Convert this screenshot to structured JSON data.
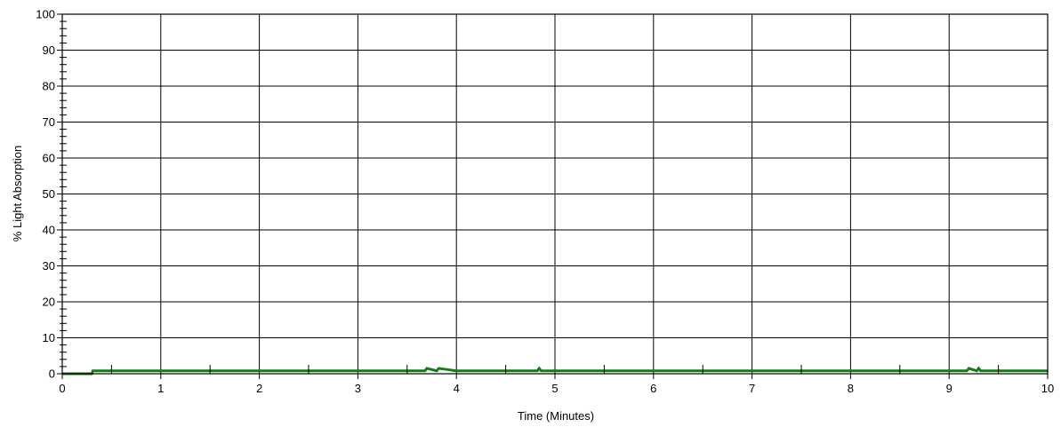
{
  "chart_data": {
    "type": "line",
    "title": "",
    "xlabel": "Time (Minutes)",
    "ylabel": "% Light Absorption",
    "xlim": [
      0,
      10
    ],
    "ylim": [
      0,
      100
    ],
    "x_ticks": [
      0,
      1,
      2,
      3,
      4,
      5,
      6,
      7,
      8,
      9,
      10
    ],
    "y_ticks": [
      0,
      10,
      20,
      30,
      40,
      50,
      60,
      70,
      80,
      90,
      100
    ],
    "x_tick_labels": [
      "0",
      "1",
      "2",
      "3",
      "4",
      "5",
      "6",
      "7",
      "8",
      "9",
      "10"
    ],
    "y_tick_labels": [
      "0",
      "10",
      "20",
      "30",
      "40",
      "50",
      "60",
      "70",
      "80",
      "90",
      "100"
    ],
    "grid": true,
    "legend": "none",
    "series": [
      {
        "color": "#1a7a1a",
        "x": [
          0,
          0.3,
          0.31,
          1.0,
          2.0,
          3.0,
          3.68,
          3.7,
          3.8,
          3.82,
          4.0,
          4.82,
          4.84,
          4.86,
          5.0,
          6.0,
          7.0,
          8.0,
          9.0,
          9.18,
          9.2,
          9.28,
          9.3,
          9.32,
          10.0
        ],
        "y": [
          0,
          0,
          0.8,
          0.8,
          0.8,
          0.8,
          0.8,
          1.5,
          0.8,
          1.5,
          0.8,
          0.8,
          1.5,
          0.8,
          0.8,
          0.8,
          0.8,
          0.8,
          0.8,
          0.8,
          1.5,
          0.8,
          1.5,
          0.8,
          0.8
        ]
      }
    ]
  }
}
